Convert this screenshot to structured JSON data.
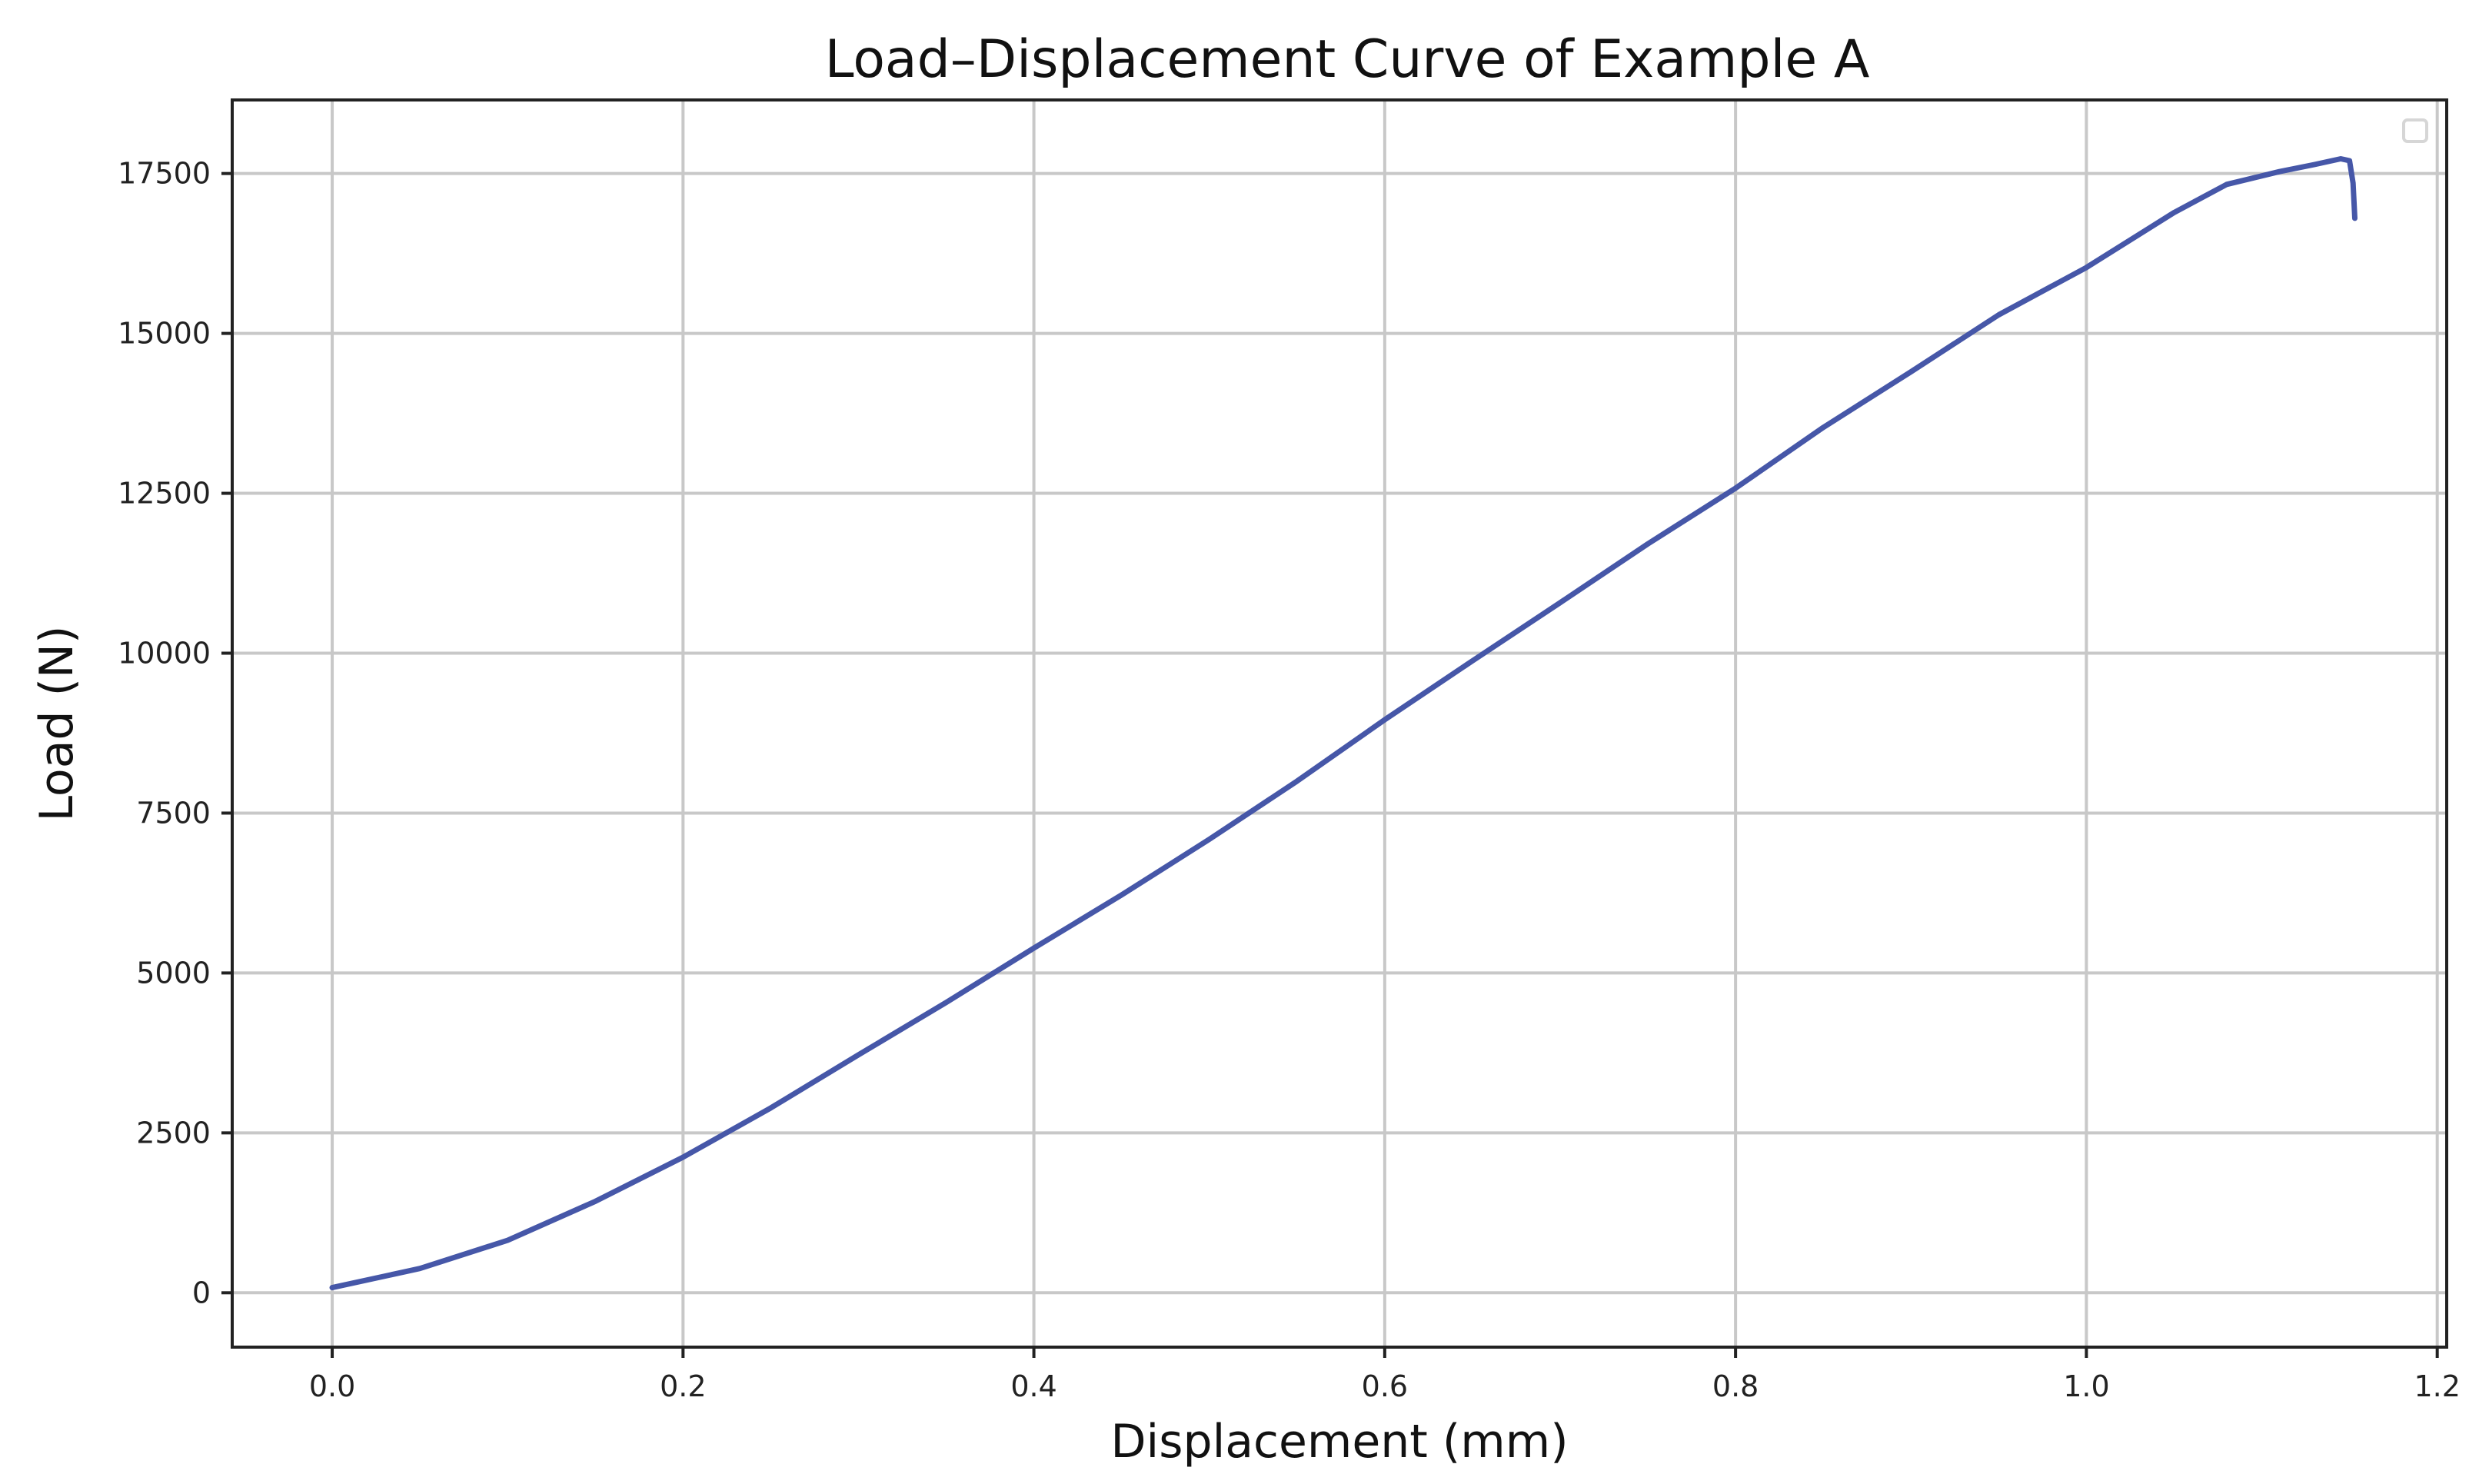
{
  "chart_data": {
    "type": "line",
    "title": "Load–Displacement Curve of Example A",
    "xlabel": "Displacement (mm)",
    "ylabel": "Load (N)",
    "xlim": [
      -0.057,
      1.2054
    ],
    "ylim": [
      -850,
      18650
    ],
    "xticks": [
      0.0,
      0.2,
      0.4,
      0.6,
      0.8,
      1.0,
      1.2
    ],
    "xtick_labels": [
      "0.0",
      "0.2",
      "0.4",
      "0.6",
      "0.8",
      "1.0",
      "1.2"
    ],
    "yticks": [
      0,
      2500,
      5000,
      7500,
      10000,
      12500,
      15000,
      17500
    ],
    "ytick_labels": [
      "0",
      "2500",
      "5000",
      "7500",
      "10000",
      "12500",
      "15000",
      "17500"
    ],
    "grid": true,
    "legend": "top-right",
    "series": [
      {
        "color": "#4657a8",
        "x": [
          0.0,
          0.05,
          0.1,
          0.15,
          0.2,
          0.25,
          0.3,
          0.35,
          0.4,
          0.45,
          0.5,
          0.55,
          0.6,
          0.65,
          0.7,
          0.75,
          0.8,
          0.85,
          0.9,
          0.95,
          1.0,
          1.05,
          1.08,
          1.11,
          1.13,
          1.145,
          1.15,
          1.152,
          1.153
        ],
        "y": [
          80,
          380,
          820,
          1430,
          2120,
          2890,
          3720,
          4540,
          5390,
          6220,
          7090,
          8000,
          8960,
          9880,
          10790,
          11710,
          12580,
          13530,
          14400,
          15290,
          16030,
          16890,
          17330,
          17530,
          17640,
          17730,
          17700,
          17350,
          16800
        ]
      }
    ]
  }
}
